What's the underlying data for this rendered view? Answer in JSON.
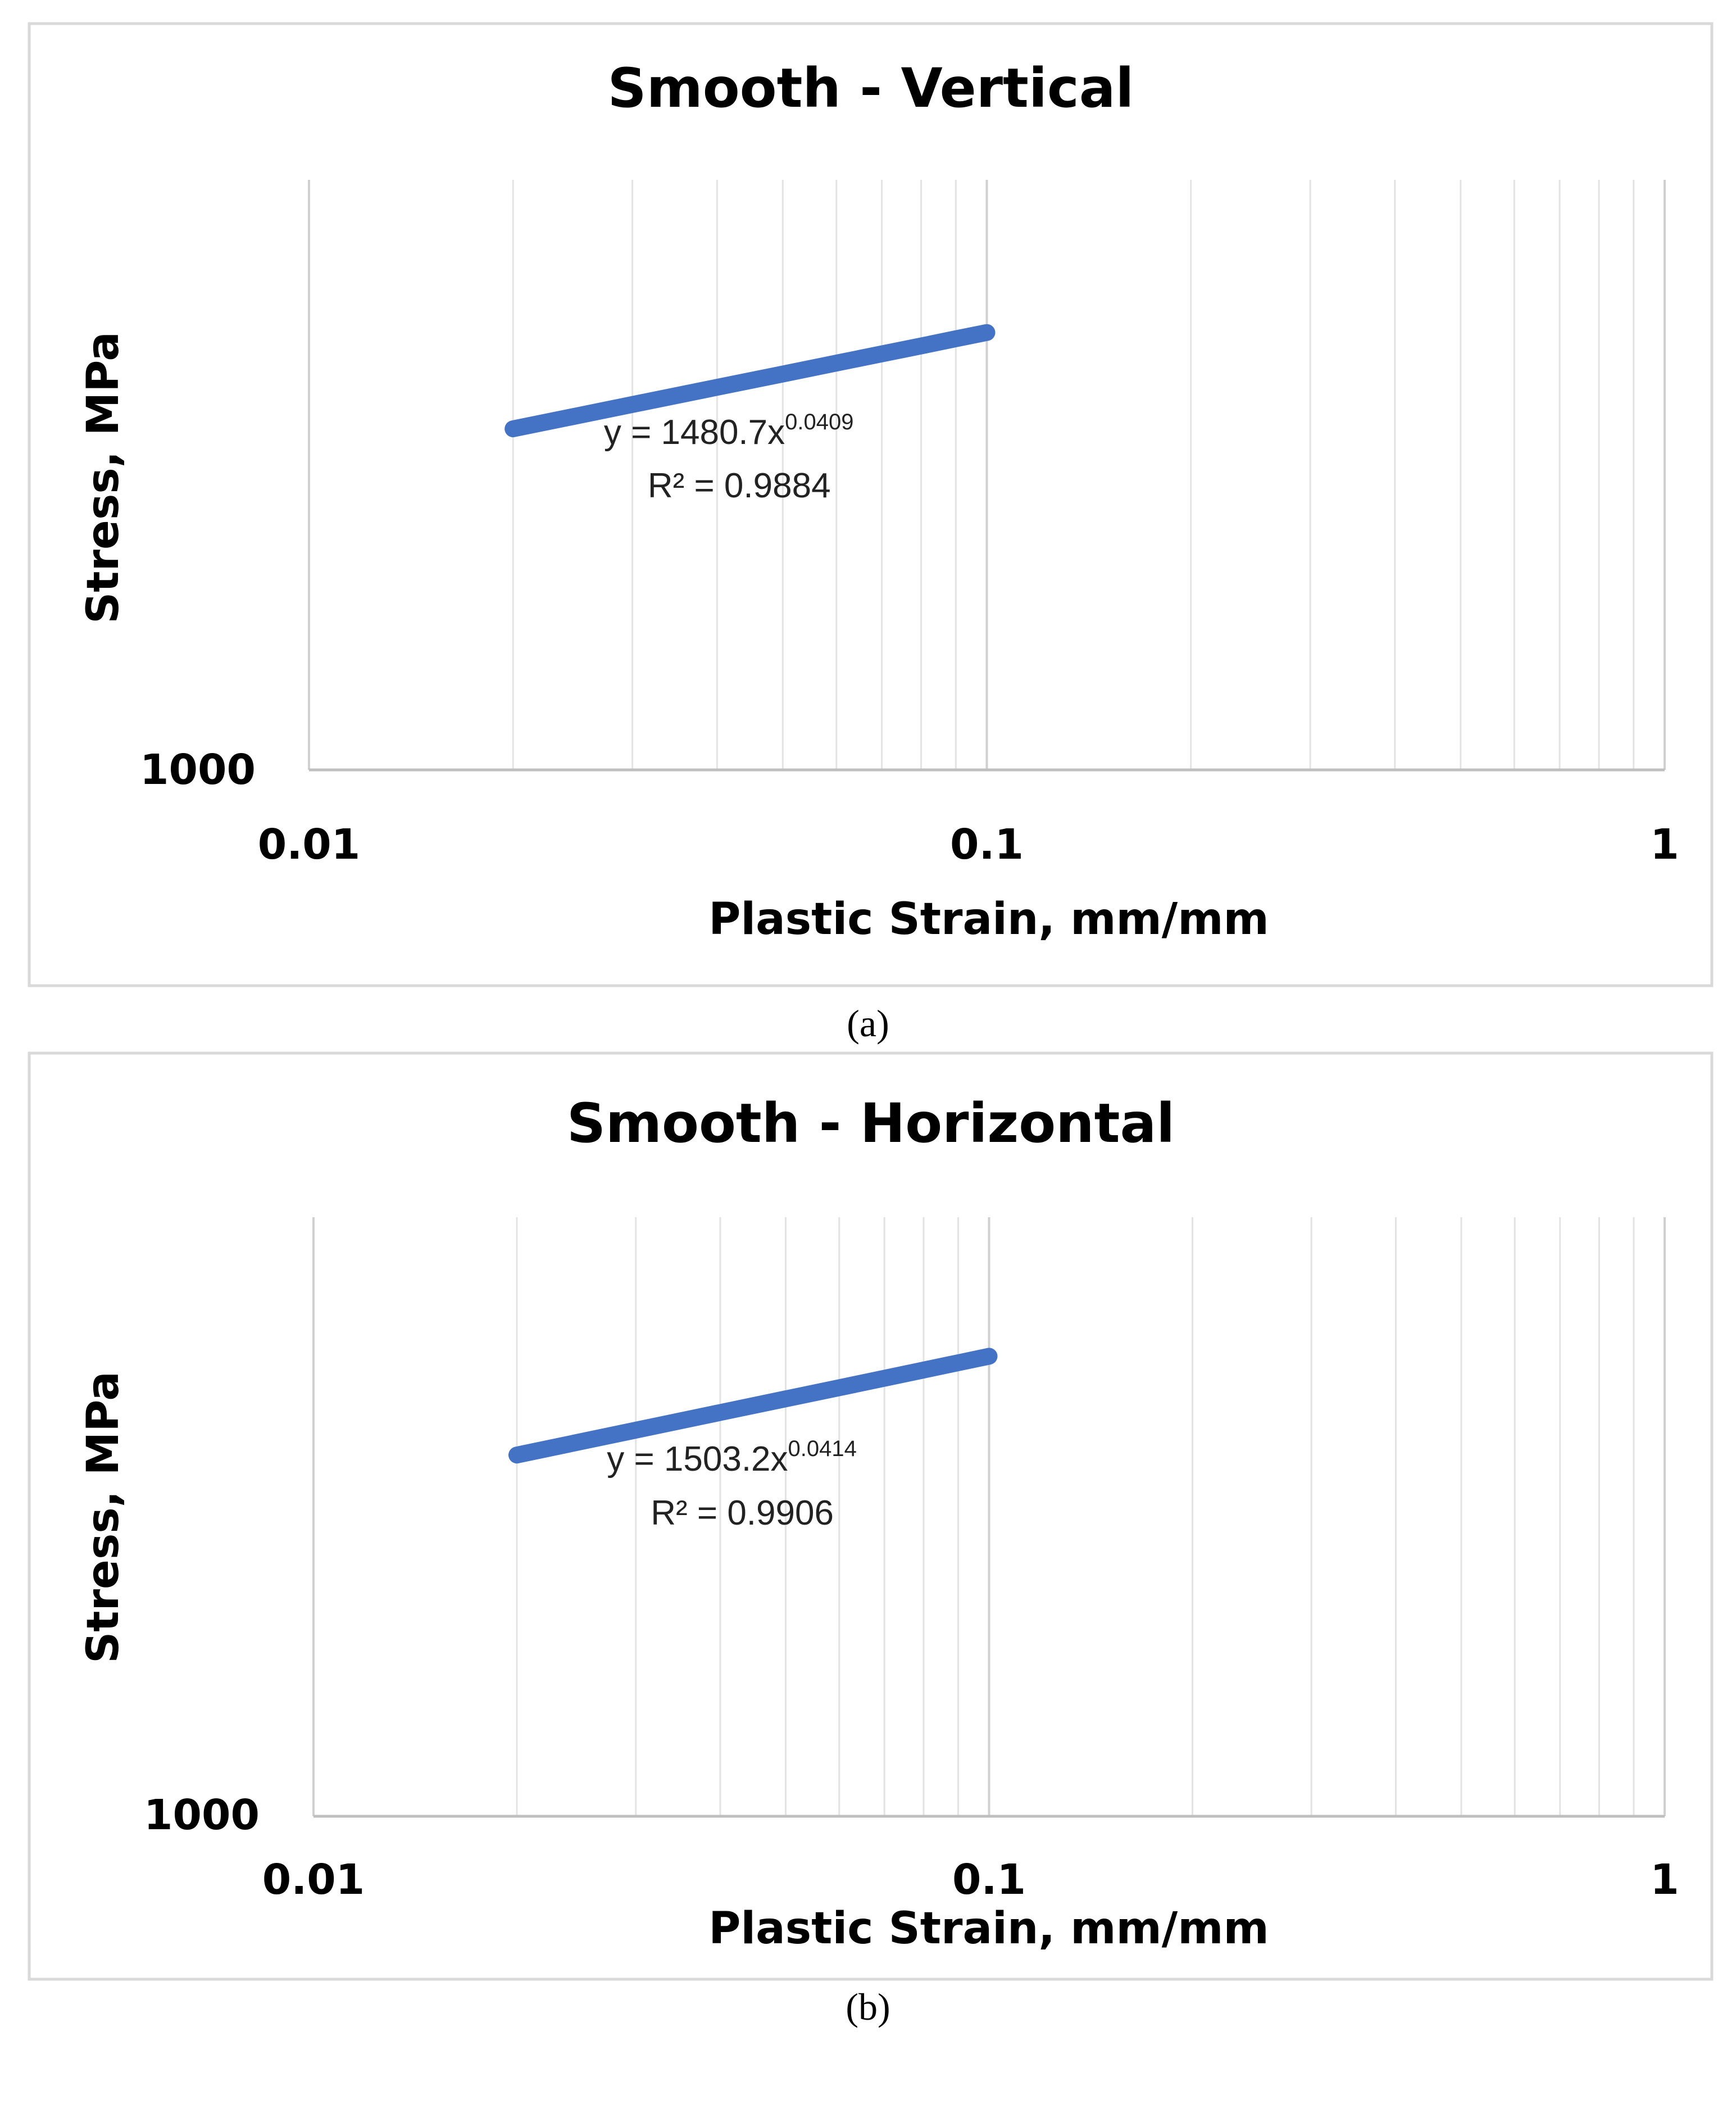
{
  "colors": {
    "series": "#4472c4",
    "frame": "#d9d9d9",
    "grid": "#e3e3e3",
    "axis": "#bfbfbf"
  },
  "chart_data": [
    {
      "type": "line",
      "panel": "a",
      "caption": "(a)",
      "title": "Smooth - Vertical",
      "xlabel": "Plastic Strain, mm/mm",
      "ylabel": "Stress, MPa",
      "xscale": "log",
      "yscale": "log",
      "xlim": [
        0.01,
        1
      ],
      "ylim": [
        1000,
        1500
      ],
      "x_ticks": [
        "0.01",
        "0.1",
        "1"
      ],
      "y_ticks": [
        "1000"
      ],
      "series": [
        {
          "name": "Smooth - Vertical",
          "x": [
            0.02,
            0.03,
            0.04,
            0.05,
            0.06,
            0.07,
            0.08,
            0.09,
            0.1
          ],
          "y": [
            1264.1,
            1285.4,
            1300.7,
            1312.6,
            1322.5,
            1330.9,
            1338.2,
            1344.8,
            1350.6
          ]
        }
      ],
      "trendline": {
        "equation_base": "y = 1480.7x",
        "equation_exp": "0.0409",
        "r2_label": "R² = 0.9884"
      }
    },
    {
      "type": "line",
      "panel": "b",
      "caption": "(b)",
      "title": "Smooth - Horizontal",
      "xlabel": "Plastic Strain, mm/mm",
      "ylabel": "Stress, MPa",
      "xscale": "log",
      "yscale": "log",
      "xlim": [
        0.01,
        1
      ],
      "ylim": [
        1000,
        1500
      ],
      "x_ticks": [
        "0.01",
        "0.1",
        "1"
      ],
      "y_ticks": [
        "1000"
      ],
      "series": [
        {
          "name": "Smooth - Horizontal",
          "x": [
            0.02,
            0.03,
            0.04,
            0.05,
            0.06,
            0.07,
            0.08,
            0.09,
            0.1
          ],
          "y": [
            1277.0,
            1298.7,
            1314.3,
            1326.5,
            1336.5,
            1345.1,
            1352.6,
            1359.3,
            1365.3
          ]
        }
      ],
      "trendline": {
        "equation_base": "y = 1503.2x",
        "equation_exp": "0.0414",
        "r2_label": "R² = 0.9906"
      }
    }
  ]
}
